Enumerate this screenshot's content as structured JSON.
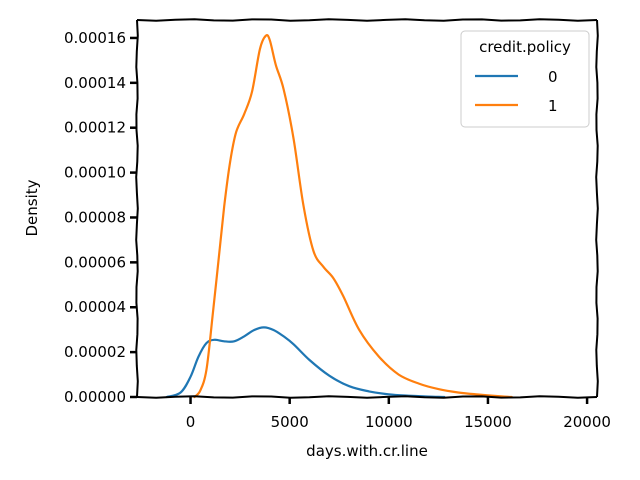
{
  "chart_data": {
    "type": "line",
    "title": "",
    "xlabel": "days.with.cr.line",
    "ylabel": "Density",
    "xlim": [
      -2700,
      20500
    ],
    "ylim": [
      0,
      0.000168
    ],
    "x_ticks": [
      0,
      5000,
      10000,
      15000,
      20000
    ],
    "x_tick_labels": [
      "0",
      "5000",
      "10000",
      "15000",
      "20000"
    ],
    "y_ticks": [
      0,
      2e-05,
      4e-05,
      6e-05,
      8e-05,
      0.0001,
      0.00012,
      0.00014,
      0.00016
    ],
    "y_tick_labels": [
      "0.00000",
      "0.00002",
      "0.00004",
      "0.00006",
      "0.00008",
      "0.00010",
      "0.00012",
      "0.00014",
      "0.00016"
    ],
    "grid": false,
    "legend": {
      "title": "credit.policy",
      "position": "top-right"
    },
    "series": [
      {
        "name": "0",
        "color": "#1f77b4",
        "x": [
          -1200,
          -500,
          0,
          400,
          800,
          1200,
          1700,
          2200,
          2700,
          3200,
          3700,
          4200,
          4700,
          5200,
          6000,
          7000,
          8000,
          9000,
          10000,
          11000,
          12000,
          12800
        ],
        "y": [
          0,
          2e-06,
          9e-06,
          1.8e-05,
          2.4e-05,
          2.55e-05,
          2.48e-05,
          2.48e-05,
          2.7e-05,
          2.98e-05,
          3.1e-05,
          2.98e-05,
          2.7e-05,
          2.35e-05,
          1.65e-05,
          9.5e-06,
          4.8e-06,
          2.5e-06,
          1.2e-06,
          6e-07,
          2e-07,
          0
        ]
      },
      {
        "name": "1",
        "color": "#ff7f0e",
        "x": [
          200,
          500,
          800,
          1100,
          1400,
          1700,
          2000,
          2300,
          2700,
          3100,
          3500,
          3800,
          4000,
          4300,
          4700,
          5200,
          5700,
          6200,
          6700,
          7200,
          7700,
          8500,
          9500,
          10500,
          11500,
          12500,
          13500,
          14500,
          15500,
          16200
        ],
        "y": [
          0,
          3e-06,
          1.2e-05,
          3.5e-05,
          6e-05,
          8.5e-05,
          0.000105,
          0.000118,
          0.000126,
          0.000136,
          0.000155,
          0.000161,
          0.000159,
          0.000148,
          0.000137,
          0.000115,
          8.5e-05,
          6.5e-05,
          5.8e-05,
          5.3e-05,
          4.5e-05,
          3e-05,
          1.8e-05,
          1e-05,
          6e-06,
          3.5e-06,
          2e-06,
          1.1e-06,
          4e-07,
          0
        ]
      }
    ]
  }
}
